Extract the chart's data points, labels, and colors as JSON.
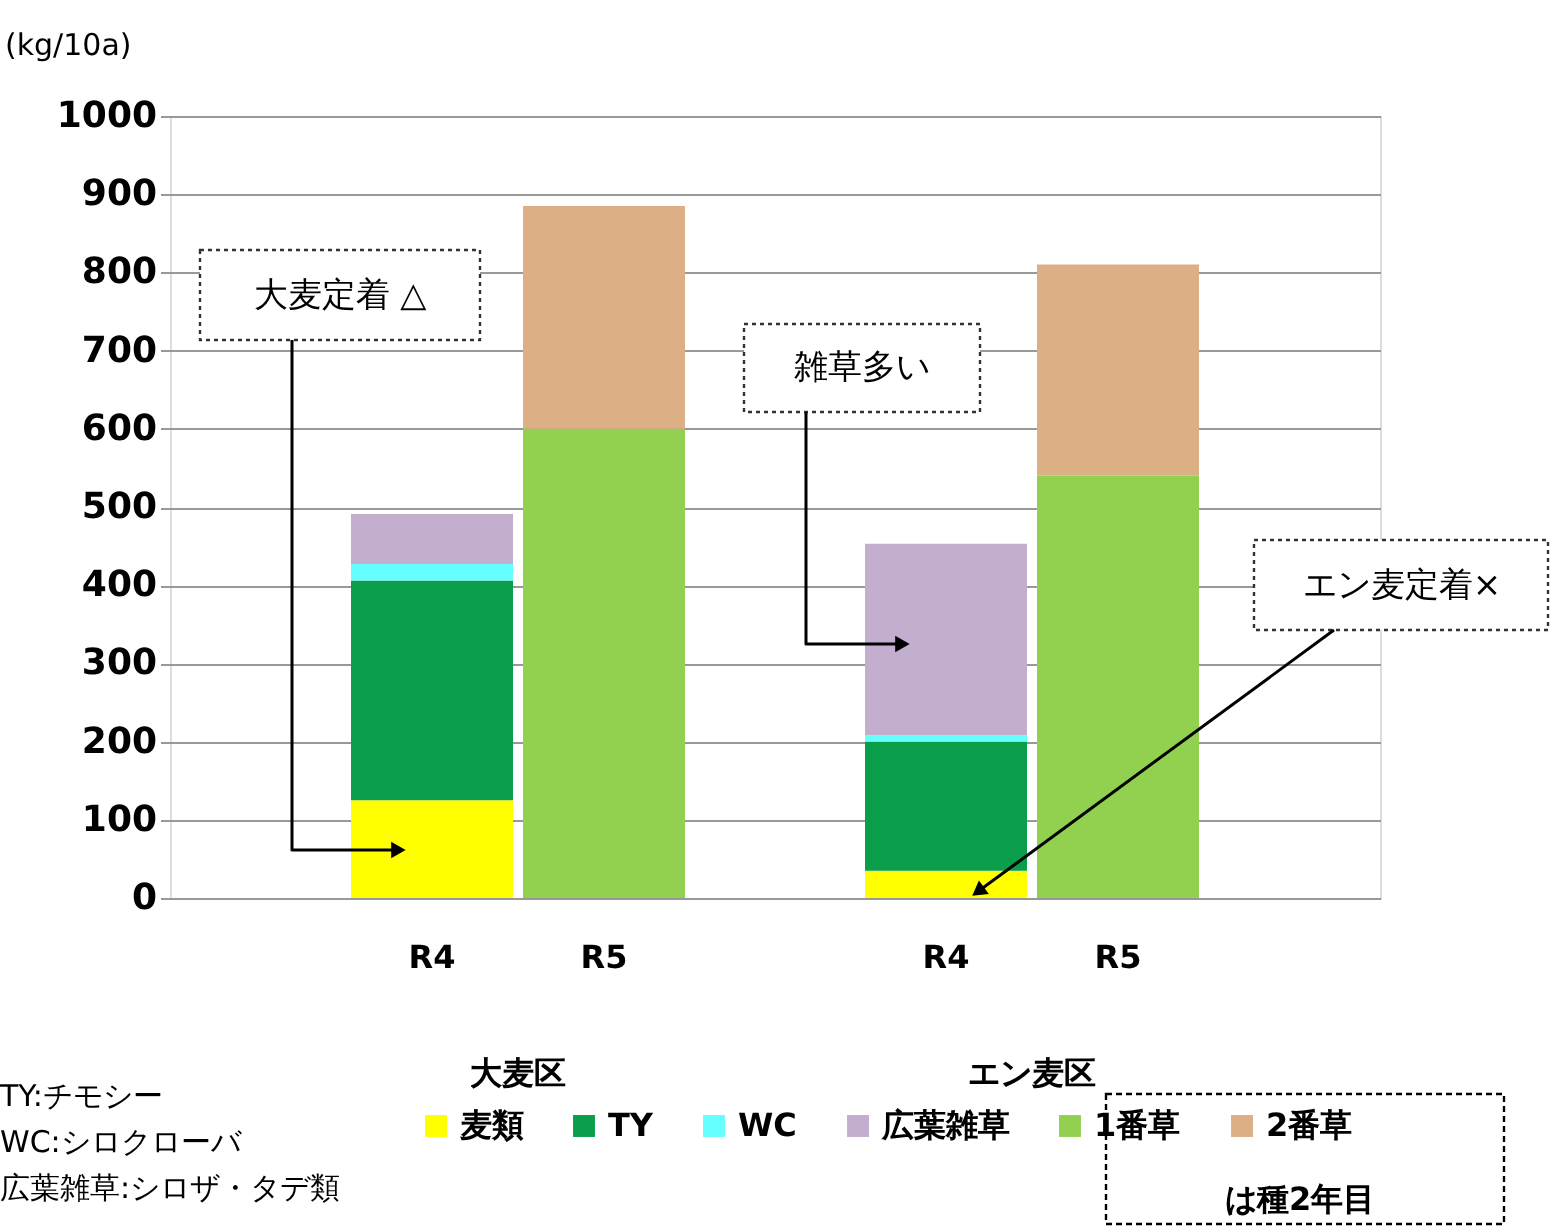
{
  "chart_data": {
    "type": "bar",
    "stacked": true,
    "categories": [
      "R4",
      "R5",
      "R4",
      "R5"
    ],
    "series": [
      {
        "name": "麦類",
        "color": "#ffff00",
        "values": [
          125,
          0,
          35,
          0
        ]
      },
      {
        "name": "TY",
        "color": "#0b9e4a",
        "values": [
          281,
          0,
          165,
          0
        ]
      },
      {
        "name": "WC",
        "color": "#66ffff",
        "values": [
          21,
          0,
          8,
          0
        ]
      },
      {
        "name": "広葉雑草",
        "color": "#c3aed0",
        "values": [
          64,
          0,
          245,
          0
        ]
      },
      {
        "name": "1番草",
        "color": "#92d050",
        "values": [
          0,
          600,
          0,
          540
        ]
      },
      {
        "name": "2番草",
        "color": "#dcb084",
        "values": [
          0,
          285,
          0,
          270
        ]
      }
    ],
    "ylabel": "(kg/10a)",
    "ylim": [
      0,
      1000
    ],
    "yticks": [
      0,
      100,
      200,
      300,
      400,
      500,
      600,
      700,
      800,
      900,
      1000
    ],
    "grid": "y",
    "legend": "bottom",
    "annotations": [
      "大麦定着 △",
      "雑草多い",
      "エン麦定着×",
      "大麦区",
      "エン麦区",
      "TY:チモシー",
      "WC:シロクローバ",
      "広葉雑草:シロザ・タデ類",
      "は種2年目"
    ]
  }
}
